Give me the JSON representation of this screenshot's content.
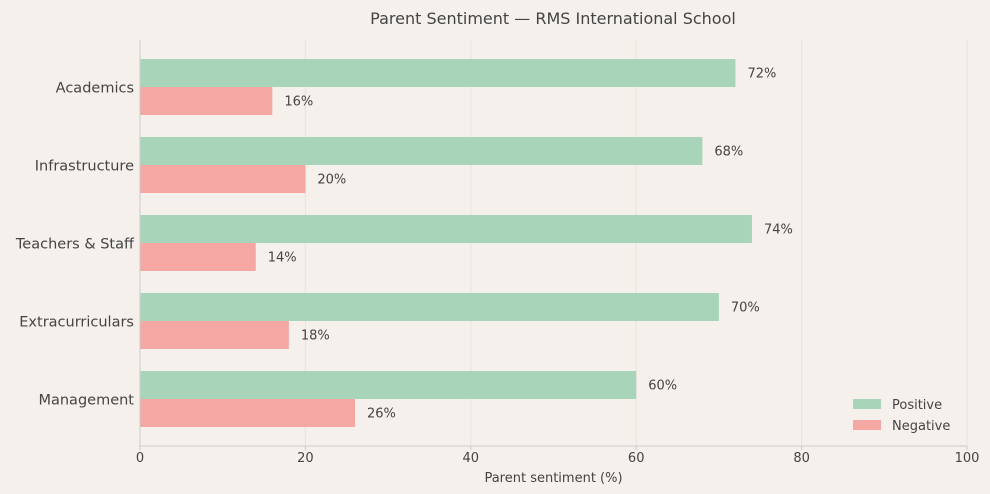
{
  "chart_data": {
    "type": "bar",
    "orientation": "horizontal",
    "title": "Parent Sentiment — RMS International School",
    "xlabel": "Parent sentiment (%)",
    "ylabel": "",
    "xlim": [
      0,
      100
    ],
    "xticks": [
      0,
      20,
      40,
      60,
      80,
      100
    ],
    "grid": "vertical",
    "legend_position": "bottom-right",
    "value_suffix": "%",
    "categories": [
      "Academics",
      "Infrastructure",
      "Teachers & Staff",
      "Extracurriculars",
      "Management"
    ],
    "series": [
      {
        "name": "Positive",
        "color": "#a8d5b9",
        "values": [
          72,
          68,
          74,
          70,
          60
        ]
      },
      {
        "name": "Negative",
        "color": "#f5a8a3",
        "values": [
          16,
          20,
          14,
          18,
          26
        ]
      }
    ]
  }
}
